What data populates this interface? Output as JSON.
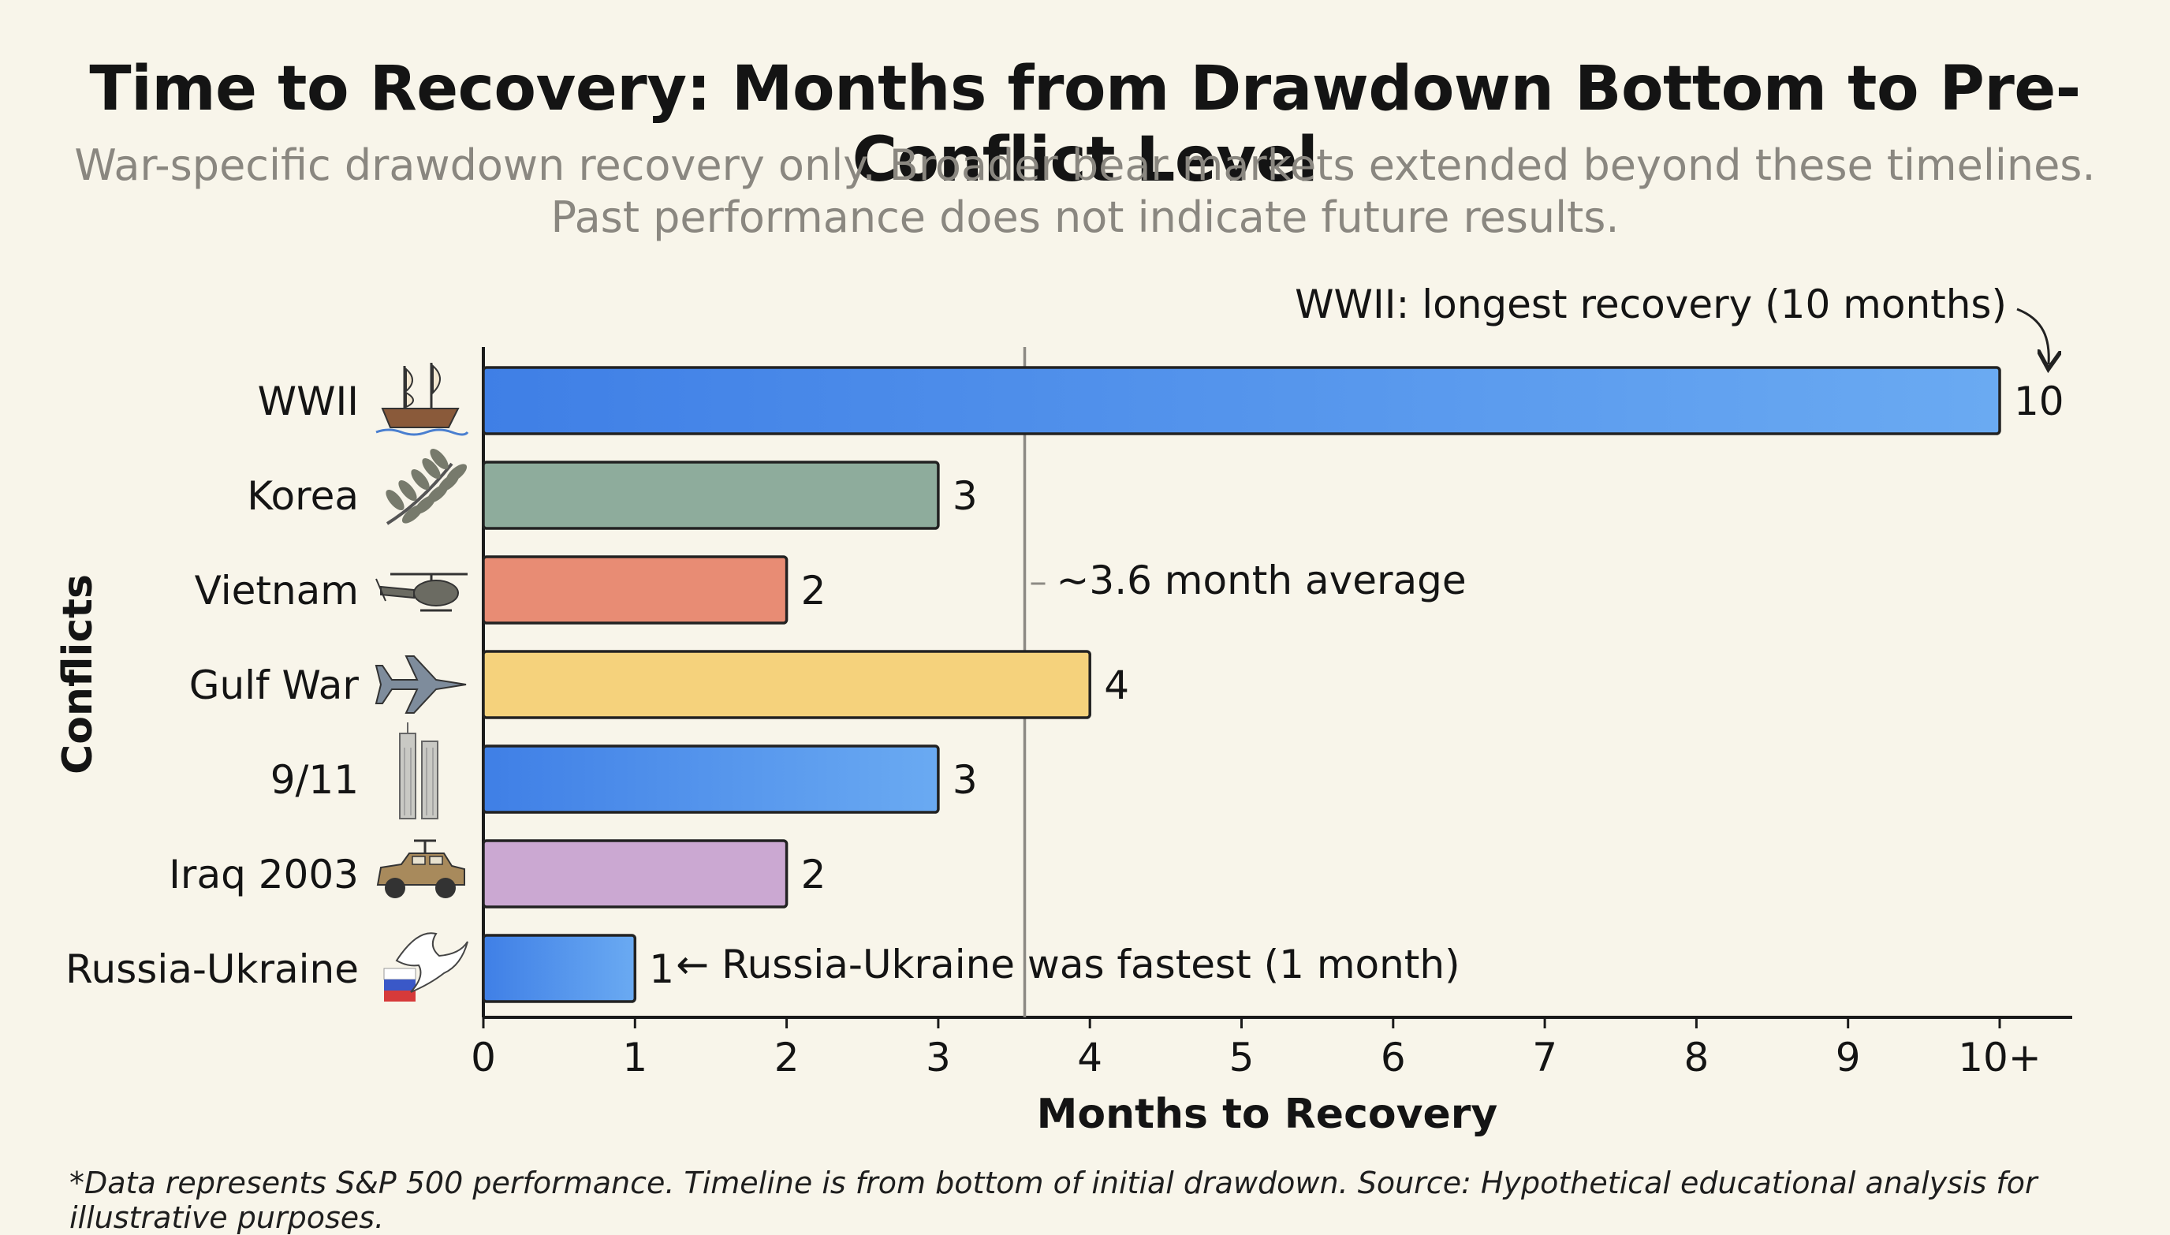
{
  "chart_data": {
    "type": "bar",
    "orientation": "horizontal",
    "title": "Time to Recovery: Months from Drawdown Bottom to Pre-Conflict Level",
    "subtitle_lines": [
      "War-specific drawdown recovery only. Broader bear markets extended beyond these timelines.",
      "Past performance does not indicate future results."
    ],
    "xlabel": "Months to Recovery",
    "ylabel": "Conflicts",
    "xlim": [
      0,
      10.5
    ],
    "x_ticks": [
      "0",
      "1",
      "2",
      "3",
      "4",
      "5",
      "6",
      "7",
      "8",
      "9",
      "10+"
    ],
    "categories": [
      "WWII",
      "Korea",
      "Vietnam",
      "Gulf War",
      "9/11",
      "Iraq 2003",
      "Russia-Ukraine"
    ],
    "values": [
      10,
      3,
      2,
      4,
      3,
      2,
      1
    ],
    "value_labels": [
      "10",
      "3",
      "2",
      "4",
      "3",
      "2",
      "1"
    ],
    "bar_colors": [
      "#4a8ae8",
      "#8eac9c",
      "#e88c74",
      "#f5d27c",
      "#4a8ae8",
      "#cba8d2",
      "#4a8ae8"
    ],
    "icons": [
      "sailing-ship-icon",
      "olive-branch-icon",
      "helicopter-icon",
      "fighter-jet-icon",
      "twin-towers-icon",
      "humvee-icon",
      "dove-flag-icon"
    ],
    "average": {
      "value": 3.57,
      "label": "~3.6 month average"
    },
    "annotations": [
      {
        "text": "WWII: longest recovery (10 months)"
      },
      {
        "text": "← Russia-Ukraine was fastest (1 month)"
      }
    ],
    "grid": false
  },
  "footnote": "*Data represents S&P 500 performance. Timeline is from bottom of initial drawdown. Source: Hypothetical educational analysis for illustrative purposes."
}
